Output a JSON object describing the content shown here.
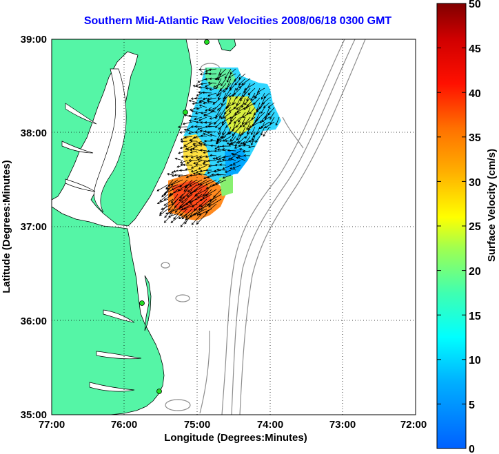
{
  "title": "Southern Mid-Atlantic Raw Velocities 2008/06/18 0300 GMT",
  "x_axis": {
    "label": "Longitude (Degrees:Minutes)",
    "ticks": [
      "77:00",
      "76:00",
      "75:00",
      "74:00",
      "73:00",
      "72:00"
    ]
  },
  "y_axis": {
    "label": "Latitude (Degrees:Minutes)",
    "ticks": [
      "39:00",
      "38:00",
      "37:00",
      "36:00",
      "35:00"
    ]
  },
  "colorbar": {
    "label": "Surface Velocity (cm/s)",
    "ticks": [
      "50",
      "45",
      "40",
      "35",
      "30",
      "25",
      "20",
      "15",
      "10",
      "5",
      "0"
    ],
    "min": 0,
    "max": 50
  },
  "colors": {
    "land": "#55f5a6",
    "title": "#0000ff",
    "station": "#22dd22",
    "bathymetry": "#888888"
  },
  "grid": "dotted"
}
